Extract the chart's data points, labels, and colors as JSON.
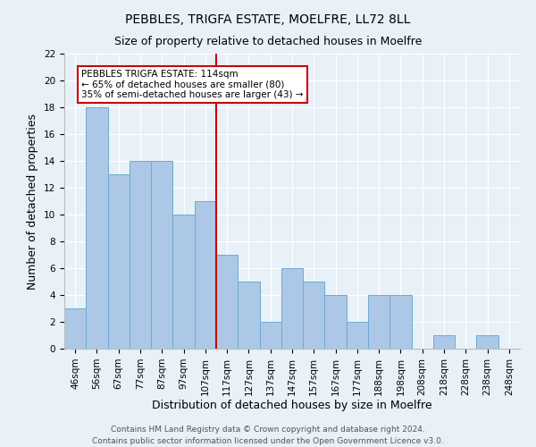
{
  "title": "PEBBLES, TRIGFA ESTATE, MOELFRE, LL72 8LL",
  "subtitle": "Size of property relative to detached houses in Moelfre",
  "xlabel": "Distribution of detached houses by size in Moelfre",
  "ylabel": "Number of detached properties",
  "bin_labels": [
    "46sqm",
    "56sqm",
    "67sqm",
    "77sqm",
    "87sqm",
    "97sqm",
    "107sqm",
    "117sqm",
    "127sqm",
    "137sqm",
    "147sqm",
    "157sqm",
    "167sqm",
    "177sqm",
    "188sqm",
    "198sqm",
    "208sqm",
    "218sqm",
    "228sqm",
    "238sqm",
    "248sqm"
  ],
  "counts": [
    3,
    18,
    13,
    14,
    14,
    10,
    11,
    7,
    5,
    2,
    6,
    5,
    4,
    2,
    4,
    4,
    0,
    1,
    0,
    1,
    0
  ],
  "bar_color": "#adc8e6",
  "bar_edgecolor": "#6aaad4",
  "vline_bin": 7,
  "vline_color": "#cc0000",
  "annotation_title": "PEBBLES TRIGFA ESTATE: 114sqm",
  "annotation_line1": "← 65% of detached houses are smaller (80)",
  "annotation_line2": "35% of semi-detached houses are larger (43) →",
  "annotation_box_facecolor": "#ffffff",
  "annotation_box_edgecolor": "#cc0000",
  "ylim": [
    0,
    22
  ],
  "yticks": [
    0,
    2,
    4,
    6,
    8,
    10,
    12,
    14,
    16,
    18,
    20,
    22
  ],
  "footer1": "Contains HM Land Registry data © Crown copyright and database right 2024.",
  "footer2": "Contains public sector information licensed under the Open Government Licence v3.0.",
  "fig_facecolor": "#e8f0f8",
  "ax_facecolor": "#e8f0f8",
  "grid_color": "#ffffff",
  "title_fontsize": 10,
  "subtitle_fontsize": 9,
  "axis_label_fontsize": 9,
  "tick_fontsize": 7.5,
  "footer_fontsize": 6.5,
  "annot_fontsize": 7.5
}
